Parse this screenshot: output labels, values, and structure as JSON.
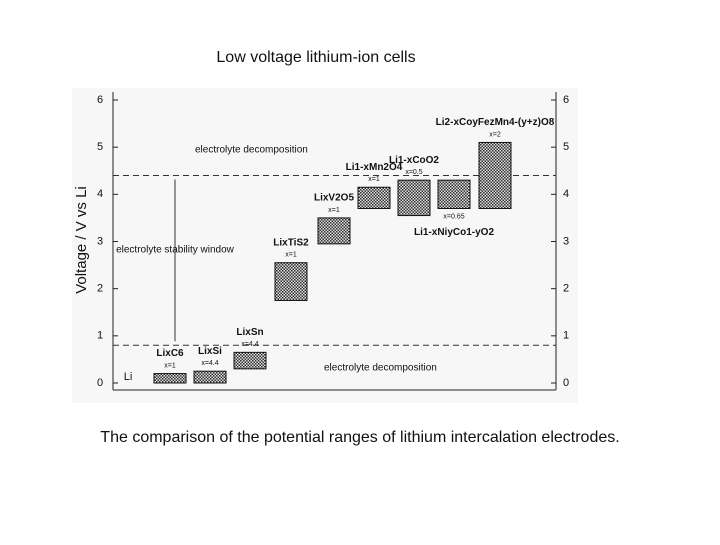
{
  "page_title": "Low voltage lithium-ion cells",
  "caption": "The comparison of the potential ranges of lithium intercalation electrodes.",
  "chart_data": {
    "type": "range-bar",
    "y_label": "Voltage / V vs Li",
    "categories": [
      "LixC6",
      "LixSi",
      "LixSn",
      "LixTiS2",
      "LixV2O5",
      "Li1-xMn2O4",
      "Li1-xCoO2",
      "Li1-xNiyCo1-yO2",
      "Li2-xCoyFezMn4-(y+z)O8"
    ],
    "notes": [
      "x=1",
      "x=4.4",
      "x=4.4",
      "x=1",
      "x=1",
      "x=1",
      "x=0.5",
      "x=0.65",
      "x=2"
    ],
    "low": [
      0,
      0,
      0.3,
      1.75,
      2.95,
      3.7,
      3.55,
      3.7,
      3.7
    ],
    "high": [
      0.2,
      0.25,
      0.65,
      2.55,
      3.5,
      4.15,
      4.3,
      4.3,
      5.1
    ],
    "reference_lines": [
      0.8,
      4.4
    ],
    "annotations": [
      "electrolyte decomposition",
      "electrolyte stability window",
      "electrolyte decomposition",
      "Li"
    ],
    "ylim": [
      0,
      6
    ],
    "yticks": [
      0,
      1,
      2,
      3,
      4,
      5,
      6
    ],
    "y2lim": [
      0,
      6
    ],
    "y2ticks": [
      0,
      1,
      2,
      3,
      4,
      5,
      6
    ],
    "color": "#555555"
  }
}
